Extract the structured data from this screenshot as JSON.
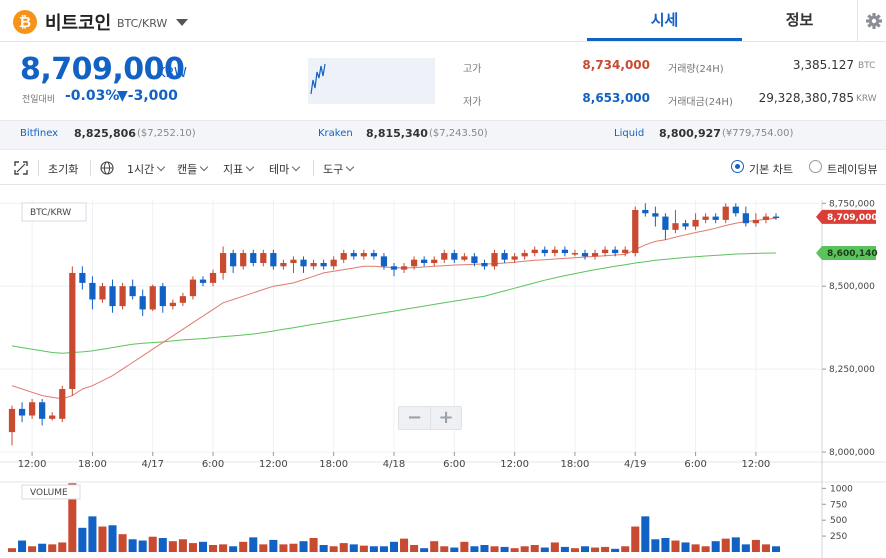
{
  "header": {
    "coin_symbol": "₿",
    "coin_name": "비트코인",
    "pair": "BTC/KRW",
    "tabs": [
      "시세",
      "정보"
    ]
  },
  "price": {
    "current": "8,709,000",
    "unit": "KRW",
    "change_label": "전일대비",
    "change_pct": "-0.03%",
    "change_abs": "▼-3,000",
    "color": "#1261c4"
  },
  "stats": {
    "high_label": "고가",
    "high": "8,734,000",
    "low_label": "저가",
    "low": "8,653,000",
    "volume_label": "거래량(24H)",
    "volume": "3,385.127",
    "volume_unit": "BTC",
    "value_label": "거래대금(24H)",
    "value": "29,328,380,785",
    "value_unit": "KRW",
    "high_color": "#c84a31",
    "low_color": "#1261c4"
  },
  "exchanges": [
    {
      "name": "Bitfinex",
      "price": "8,825,806",
      "usd": "($7,252.10)"
    },
    {
      "name": "Kraken",
      "price": "8,815,340",
      "usd": "($7,243.50)"
    },
    {
      "name": "Liquid",
      "price": "8,800,927",
      "usd": "(¥779,754.00)"
    }
  ],
  "toolbar": {
    "reset": "초기화",
    "interval": "1시간",
    "candle": "캔들",
    "indicator": "지표",
    "theme": "테마",
    "tools": "도구",
    "basic_chart": "기본 차트",
    "tradingview": "트레이딩뷰"
  },
  "chart": {
    "pair_label": "BTC/KRW",
    "volume_label": "VOLUME",
    "price_tag": "8,709,000",
    "ma_tag": "8,600,140",
    "y_ticks": [
      "8,750,000",
      "8,500,000",
      "8,250,000",
      "8,000,000"
    ],
    "volume_ticks": [
      "1000",
      "750",
      "500",
      "250"
    ],
    "x_ticks": [
      "12:00",
      "18:00",
      "4/17",
      "6:00",
      "12:00",
      "18:00",
      "4/18",
      "6:00",
      "12:00",
      "18:00",
      "4/19",
      "6:00",
      "12:00"
    ],
    "zoom_out": "−",
    "zoom_in": "+",
    "up_color": "#c84a31",
    "down_color": "#1261c4",
    "ma_short_color": "#e07a6e",
    "ma_long_color": "#5cc35c"
  },
  "chart_data": {
    "type": "candlestick",
    "ylim": [
      8000000,
      8760000
    ],
    "volume_ylim": [
      0,
      1100
    ],
    "candles": [
      [
        8060000,
        8130000,
        8020000,
        8140000
      ],
      [
        8130000,
        8110000,
        8090000,
        8150000
      ],
      [
        8110000,
        8150000,
        8100000,
        8160000
      ],
      [
        8150000,
        8100000,
        8080000,
        8160000
      ],
      [
        8100000,
        8110000,
        8095000,
        8120000
      ],
      [
        8100000,
        8190000,
        8090000,
        8200000
      ],
      [
        8190000,
        8540000,
        8170000,
        8560000
      ],
      [
        8540000,
        8510000,
        8490000,
        8560000
      ],
      [
        8510000,
        8460000,
        8430000,
        8530000
      ],
      [
        8460000,
        8500000,
        8450000,
        8510000
      ],
      [
        8500000,
        8440000,
        8420000,
        8520000
      ],
      [
        8440000,
        8500000,
        8430000,
        8510000
      ],
      [
        8500000,
        8470000,
        8460000,
        8520000
      ],
      [
        8470000,
        8430000,
        8410000,
        8490000
      ],
      [
        8430000,
        8500000,
        8425000,
        8505000
      ],
      [
        8500000,
        8440000,
        8420000,
        8510000
      ],
      [
        8440000,
        8450000,
        8430000,
        8460000
      ],
      [
        8450000,
        8470000,
        8440000,
        8480000
      ],
      [
        8470000,
        8520000,
        8460000,
        8530000
      ],
      [
        8520000,
        8510000,
        8500000,
        8530000
      ],
      [
        8510000,
        8540000,
        8500000,
        8550000
      ],
      [
        8540000,
        8600000,
        8520000,
        8620000
      ],
      [
        8600000,
        8560000,
        8540000,
        8610000
      ],
      [
        8560000,
        8600000,
        8550000,
        8610000
      ],
      [
        8600000,
        8570000,
        8560000,
        8610000
      ],
      [
        8570000,
        8600000,
        8560000,
        8610000
      ],
      [
        8600000,
        8560000,
        8550000,
        8610000
      ],
      [
        8560000,
        8570000,
        8550000,
        8580000
      ],
      [
        8570000,
        8580000,
        8540000,
        8590000
      ],
      [
        8580000,
        8560000,
        8540000,
        8590000
      ],
      [
        8560000,
        8570000,
        8550000,
        8580000
      ],
      [
        8570000,
        8560000,
        8550000,
        8580000
      ],
      [
        8560000,
        8580000,
        8550000,
        8590000
      ],
      [
        8580000,
        8600000,
        8570000,
        8610000
      ],
      [
        8600000,
        8590000,
        8580000,
        8610000
      ],
      [
        8590000,
        8600000,
        8580000,
        8610000
      ],
      [
        8600000,
        8590000,
        8580000,
        8610000
      ],
      [
        8590000,
        8560000,
        8550000,
        8600000
      ],
      [
        8560000,
        8550000,
        8530000,
        8570000
      ],
      [
        8550000,
        8560000,
        8540000,
        8570000
      ],
      [
        8560000,
        8580000,
        8550000,
        8590000
      ],
      [
        8580000,
        8570000,
        8560000,
        8590000
      ],
      [
        8570000,
        8580000,
        8560000,
        8590000
      ],
      [
        8580000,
        8600000,
        8570000,
        8610000
      ],
      [
        8600000,
        8580000,
        8570000,
        8610000
      ],
      [
        8580000,
        8590000,
        8575000,
        8600000
      ],
      [
        8590000,
        8570000,
        8560000,
        8600000
      ],
      [
        8570000,
        8560000,
        8550000,
        8580000
      ],
      [
        8560000,
        8600000,
        8550000,
        8610000
      ],
      [
        8600000,
        8580000,
        8570000,
        8610000
      ],
      [
        8580000,
        8590000,
        8570000,
        8600000
      ],
      [
        8590000,
        8600000,
        8580000,
        8610000
      ],
      [
        8600000,
        8610000,
        8590000,
        8620000
      ],
      [
        8610000,
        8600000,
        8590000,
        8620000
      ],
      [
        8600000,
        8610000,
        8590000,
        8620000
      ],
      [
        8610000,
        8600000,
        8590000,
        8620000
      ],
      [
        8600000,
        8600000,
        8590000,
        8610000
      ],
      [
        8600000,
        8590000,
        8580000,
        8610000
      ],
      [
        8590000,
        8600000,
        8580000,
        8610000
      ],
      [
        8600000,
        8610000,
        8590000,
        8620000
      ],
      [
        8610000,
        8600000,
        8590000,
        8620000
      ],
      [
        8600000,
        8610000,
        8590000,
        8620000
      ],
      [
        8600000,
        8730000,
        8590000,
        8740000
      ],
      [
        8730000,
        8720000,
        8710000,
        8750000
      ],
      [
        8720000,
        8710000,
        8680000,
        8740000
      ],
      [
        8710000,
        8670000,
        8640000,
        8720000
      ],
      [
        8670000,
        8690000,
        8660000,
        8730000
      ],
      [
        8690000,
        8680000,
        8670000,
        8700000
      ],
      [
        8680000,
        8700000,
        8670000,
        8720000
      ],
      [
        8700000,
        8710000,
        8690000,
        8720000
      ],
      [
        8710000,
        8700000,
        8690000,
        8720000
      ],
      [
        8700000,
        8740000,
        8690000,
        8750000
      ],
      [
        8740000,
        8720000,
        8710000,
        8750000
      ],
      [
        8720000,
        8690000,
        8680000,
        8740000
      ],
      [
        8690000,
        8700000,
        8680000,
        8720000
      ],
      [
        8700000,
        8710000,
        8690000,
        8720000
      ],
      [
        8710000,
        8709000,
        8700000,
        8720000
      ]
    ],
    "ma_short": [
      8200000,
      8190000,
      8180000,
      8170000,
      8165000,
      8160000,
      8170000,
      8190000,
      8200000,
      8215000,
      8230000,
      8250000,
      8270000,
      8290000,
      8310000,
      8330000,
      8350000,
      8370000,
      8390000,
      8410000,
      8430000,
      8450000,
      8460000,
      8470000,
      8480000,
      8490000,
      8500000,
      8505000,
      8510000,
      8520000,
      8530000,
      8540000,
      8545000,
      8550000,
      8555000,
      8560000,
      8560000,
      8558000,
      8556000,
      8555000,
      8556000,
      8558000,
      8560000,
      8562000,
      8564000,
      8565000,
      8566000,
      8567000,
      8568000,
      8570000,
      8572000,
      8575000,
      8578000,
      8580000,
      8582000,
      8584000,
      8586000,
      8588000,
      8590000,
      8592000,
      8594000,
      8596000,
      8610000,
      8625000,
      8635000,
      8640000,
      8648000,
      8655000,
      8662000,
      8668000,
      8675000,
      8683000,
      8690000,
      8695000,
      8698000,
      8702000,
      8705000
    ],
    "ma_long": [
      8320000,
      8315000,
      8310000,
      8305000,
      8300000,
      8298000,
      8300000,
      8302000,
      8305000,
      8310000,
      8315000,
      8320000,
      8325000,
      8328000,
      8330000,
      8332000,
      8335000,
      8338000,
      8340000,
      8342000,
      8345000,
      8348000,
      8350000,
      8353000,
      8356000,
      8360000,
      8365000,
      8370000,
      8375000,
      8380000,
      8385000,
      8390000,
      8395000,
      8400000,
      8405000,
      8410000,
      8415000,
      8420000,
      8425000,
      8430000,
      8435000,
      8440000,
      8445000,
      8450000,
      8455000,
      8460000,
      8465000,
      8470000,
      8478000,
      8486000,
      8494000,
      8502000,
      8510000,
      8518000,
      8525000,
      8532000,
      8538000,
      8544000,
      8550000,
      8555000,
      8560000,
      8565000,
      8570000,
      8574000,
      8578000,
      8581000,
      8584000,
      8587000,
      8589000,
      8591000,
      8593000,
      8595000,
      8597000,
      8598000,
      8599000,
      8600000,
      8600140
    ],
    "volume": [
      60,
      180,
      90,
      130,
      120,
      150,
      1080,
      380,
      560,
      400,
      420,
      280,
      200,
      180,
      240,
      220,
      170,
      200,
      140,
      160,
      110,
      120,
      90,
      160,
      230,
      120,
      190,
      120,
      130,
      170,
      220,
      110,
      90,
      140,
      120,
      100,
      90,
      90,
      160,
      210,
      110,
      60,
      170,
      90,
      70,
      160,
      90,
      110,
      90,
      80,
      60,
      90,
      110,
      70,
      150,
      80,
      60,
      90,
      70,
      80,
      50,
      90,
      400,
      560,
      200,
      220,
      180,
      150,
      120,
      90,
      170,
      210,
      230,
      120,
      190,
      120,
      90
    ]
  }
}
